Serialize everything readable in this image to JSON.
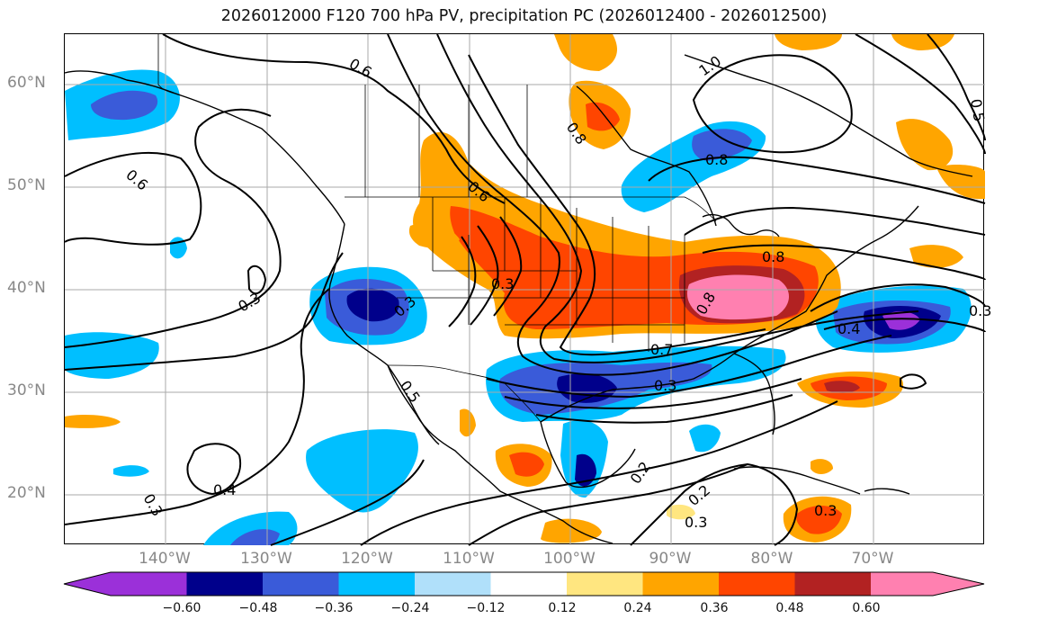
{
  "title": "2026012000 F120 700 hPa PV, precipitation PC (2026012400 - 2026012500)",
  "map": {
    "projection": "lat-lon",
    "lon_range": [
      -153,
      -62
    ],
    "lat_range": [
      15,
      65
    ],
    "lat_labels": [
      "60°N",
      "50°N",
      "40°N",
      "30°N",
      "20°N"
    ],
    "lon_labels": [
      "140°W",
      "130°W",
      "120°W",
      "110°W",
      "100°W",
      "90°W",
      "80°W",
      "70°W"
    ],
    "contour_labels": [
      "0.6",
      "0.6",
      "0.6",
      "1.0",
      "0.8",
      "0.8",
      "0.3",
      "0.3",
      "0.3",
      "0.3",
      "0.5",
      "0.4",
      "0.3",
      "0.2",
      "0.2",
      "0.3",
      "0.3",
      "0.7",
      "0.8",
      "0.4",
      "0.5",
      "0.3",
      "0.8"
    ]
  },
  "colorbar": {
    "ticks": [
      "−0.60",
      "−0.48",
      "−0.36",
      "−0.24",
      "−0.12",
      "0.12",
      "0.24",
      "0.36",
      "0.48",
      "0.60"
    ],
    "colors": [
      "#9b30d9",
      "#00008b",
      "#3a5bd9",
      "#00bfff",
      "#b0e0fa",
      "#ffffff",
      "#ffe680",
      "#ffa500",
      "#ff4500",
      "#b22222",
      "#ff80b0"
    ]
  }
}
